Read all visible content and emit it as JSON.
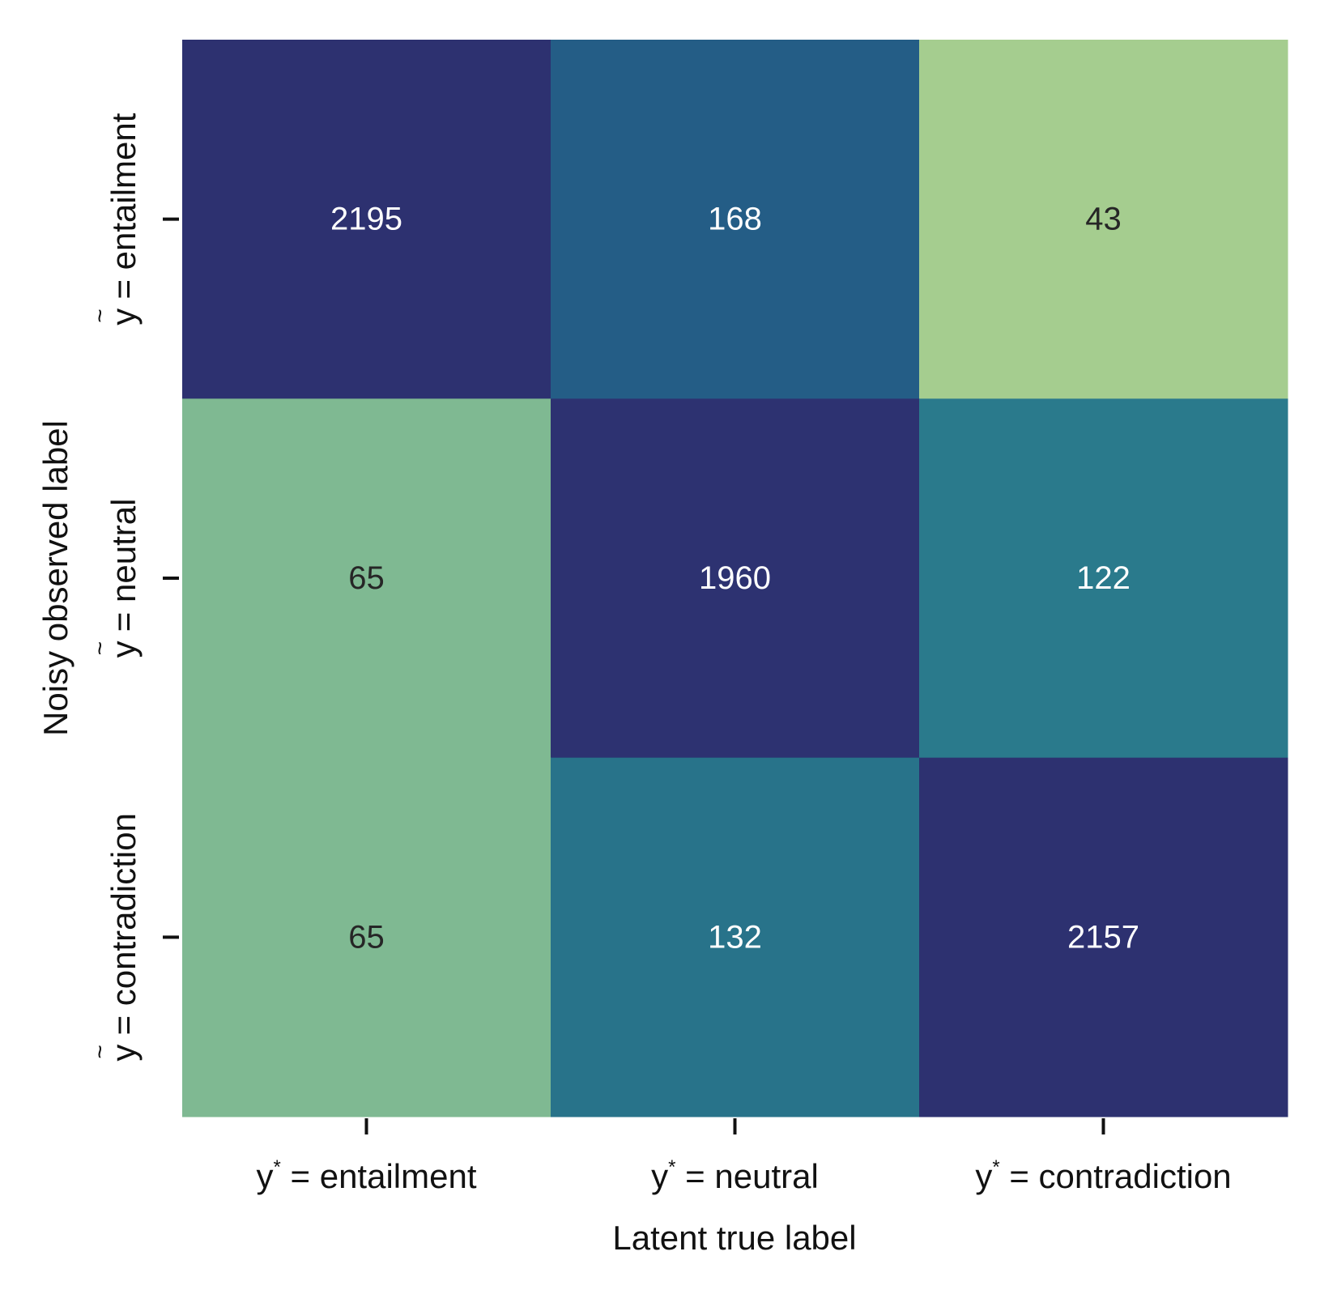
{
  "chart_data": {
    "type": "heatmap",
    "xlabel": "Latent true label",
    "ylabel": "Noisy observed label",
    "x_categories": [
      {
        "y": "y",
        "sup": "*",
        "rest": " = entailment"
      },
      {
        "y": "y",
        "sup": "*",
        "rest": " = neutral"
      },
      {
        "y": "y",
        "sup": "*",
        "rest": " = contradiction"
      }
    ],
    "y_categories": [
      {
        "y": "y",
        "mark": "~",
        "rest": " = entailment"
      },
      {
        "y": "y",
        "mark": "~",
        "rest": " = neutral"
      },
      {
        "y": "y",
        "mark": "~",
        "rest": " = contradiction"
      }
    ],
    "values": [
      [
        2195,
        168,
        43
      ],
      [
        65,
        1960,
        122
      ],
      [
        65,
        132,
        2157
      ]
    ],
    "colorbar": false,
    "colors": {
      "low": "#a5cd8f",
      "mid": "#2f8a8c",
      "high": "#2d3170",
      "text_dark": "#262626",
      "text_light": "#ffffff"
    }
  }
}
